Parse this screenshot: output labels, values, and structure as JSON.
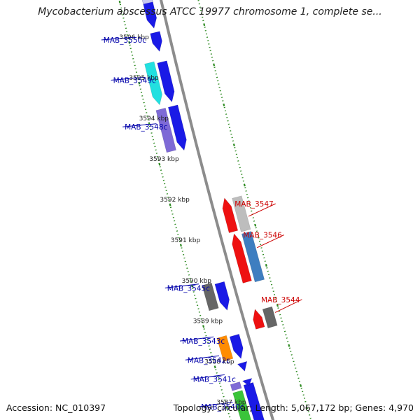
{
  "title": "Mycobacterium abscessus ATCC 19977 chromosome 1, complete se...",
  "footer": {
    "accession": "Accession: NC_010397",
    "summary": "Topology: circular; Length: 5,067,172 bp; Genes: 4,970"
  },
  "colors": {
    "backbone": "#8c8c8c",
    "tick_dotted": "#2e8b22",
    "plus_label": "#cc0000",
    "minus_label": "#0000aa",
    "kbp_label": "#222222"
  },
  "kbp_labels": [
    {
      "t": 0.06,
      "text": "3596 kbp"
    },
    {
      "t": 0.156,
      "text": "3595 kbp"
    },
    {
      "t": 0.252,
      "text": "3594 kbp"
    },
    {
      "t": 0.348,
      "text": "3593 kbp"
    },
    {
      "t": 0.444,
      "text": "3592 kbp"
    },
    {
      "t": 0.54,
      "text": "3591 kbp"
    },
    {
      "t": 0.636,
      "text": "3590 kbp"
    },
    {
      "t": 0.731,
      "text": "3589 kbp"
    },
    {
      "t": 0.827,
      "text": "3588 kbp"
    },
    {
      "t": 0.923,
      "text": "3587 kbp"
    }
  ],
  "genes": [
    {
      "name": "MAB_3550c",
      "lane": "m1",
      "t0": -0.02,
      "t1": 0.06,
      "color": "#1a1ae6",
      "dir": "down"
    },
    {
      "name": "",
      "lane": "m1",
      "t0": 0.07,
      "t1": 0.115,
      "color": "#1a1ae6",
      "dir": "down"
    },
    {
      "name": "MAB_3549c",
      "lane": "m1",
      "t0": 0.14,
      "t1": 0.235,
      "color": "#1a1ae6",
      "dir": "down"
    },
    {
      "name": "",
      "lane": "m2",
      "t0": 0.135,
      "t1": 0.235,
      "color": "#22e0e0",
      "dir": "down"
    },
    {
      "name": "MAB_3548c",
      "lane": "m1",
      "t0": 0.245,
      "t1": 0.35,
      "color": "#1a1ae6",
      "dir": "down"
    },
    {
      "name": "",
      "lane": "m2",
      "t0": 0.245,
      "t1": 0.345,
      "color": "#7e6ad6",
      "dir": "none"
    },
    {
      "name": "MAB_3547",
      "lane": "p1",
      "t0": 0.485,
      "t1": 0.565,
      "color": "#bdbdbd",
      "dir": "none"
    },
    {
      "name": "",
      "lane": "p2",
      "t0": 0.48,
      "t1": 0.56,
      "color": "#ee1111",
      "dir": "up"
    },
    {
      "name": "MAB_3546",
      "lane": "p1",
      "t0": 0.57,
      "t1": 0.685,
      "color": "#3e7ec0",
      "dir": "none"
    },
    {
      "name": "",
      "lane": "p2",
      "t0": 0.565,
      "t1": 0.68,
      "color": "#ee1111",
      "dir": "up"
    },
    {
      "name": "MAB_3545c",
      "lane": "m1",
      "t0": 0.665,
      "t1": 0.73,
      "color": "#1a1ae6",
      "dir": "down"
    },
    {
      "name": "",
      "lane": "m2",
      "t0": 0.66,
      "t1": 0.72,
      "color": "#666666",
      "dir": "none"
    },
    {
      "name": "MAB_3544",
      "lane": "p1",
      "t0": 0.75,
      "t1": 0.795,
      "color": "#666666",
      "dir": "none"
    },
    {
      "name": "",
      "lane": "p2",
      "t0": 0.745,
      "t1": 0.79,
      "color": "#ee1111",
      "dir": "up"
    },
    {
      "name": "MAB_3543c",
      "lane": "m1",
      "t0": 0.79,
      "t1": 0.845,
      "color": "#1a1ae6",
      "dir": "down"
    },
    {
      "name": "MAB_3542c",
      "lane": "m2",
      "t0": 0.785,
      "t1": 0.84,
      "color": "#ff8c00",
      "dir": "none"
    },
    {
      "name": "MAB_3541c",
      "lane": "m1",
      "t0": 0.855,
      "t1": 0.875,
      "color": "#1a1ae6",
      "dir": "down"
    },
    {
      "name": "MAB_3540c",
      "lane": "m1",
      "t0": 0.905,
      "t1": 1.02,
      "color": "#1a1ae6",
      "dir": "down"
    },
    {
      "name": "",
      "lane": "m1",
      "t0": 0.895,
      "t1": 0.91,
      "color": "#1a1ae6",
      "dir": "down"
    },
    {
      "name": "",
      "lane": "m2",
      "t0": 0.895,
      "t1": 0.91,
      "color": "#7e6ad6",
      "dir": "none"
    },
    {
      "name": "",
      "lane": "m2",
      "t0": 0.915,
      "t1": 1.02,
      "color": "#3ac43a",
      "dir": "none"
    },
    {
      "name": "",
      "lane": "p2",
      "t0": -0.02,
      "t1": 0.0,
      "color": "#ee1111",
      "dir": "up"
    },
    {
      "name": "",
      "lane": "m1",
      "t0": -0.02,
      "t1": 0.0,
      "color": "#c8c8f0",
      "dir": "none"
    }
  ],
  "gene_labels": [
    {
      "text": "MAB_3550c",
      "side": "minus",
      "t": 0.07
    },
    {
      "text": "MAB_3549c",
      "side": "minus",
      "t": 0.165
    },
    {
      "text": "MAB_3548c",
      "side": "minus",
      "t": 0.275
    },
    {
      "text": "MAB_3547",
      "side": "plus",
      "t": 0.535
    },
    {
      "text": "MAB_3546",
      "side": "plus",
      "t": 0.61
    },
    {
      "text": "MAB_3545c",
      "side": "minus",
      "t": 0.655
    },
    {
      "text": "MAB_3544",
      "side": "plus",
      "t": 0.765
    },
    {
      "text": "MAB_3543c",
      "side": "minus",
      "t": 0.78
    },
    {
      "text": "MAB_3542c",
      "side": "minus",
      "t": 0.825
    },
    {
      "text": "MAB_3541c",
      "side": "minus",
      "t": 0.87
    },
    {
      "text": "MAB_3540c",
      "side": "minus",
      "t": 0.935
    }
  ]
}
